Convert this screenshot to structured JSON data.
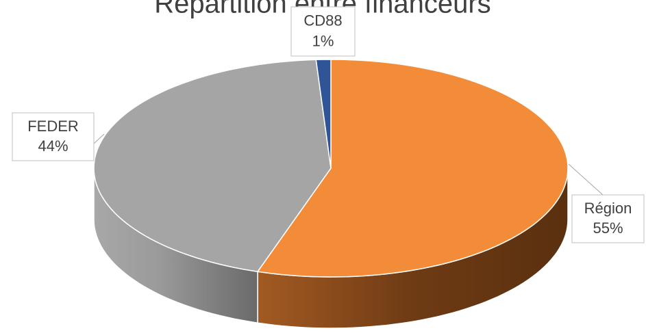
{
  "chart_data": {
    "type": "pie",
    "title": "Répartition entre financeurs",
    "categories": [
      "Région",
      "FEDER",
      "CD88"
    ],
    "values": [
      55,
      44,
      1
    ],
    "value_labels": [
      "55%",
      "44%",
      "1%"
    ],
    "colors": [
      "#f28c38",
      "#a5a5a5",
      "#2f5597"
    ]
  }
}
